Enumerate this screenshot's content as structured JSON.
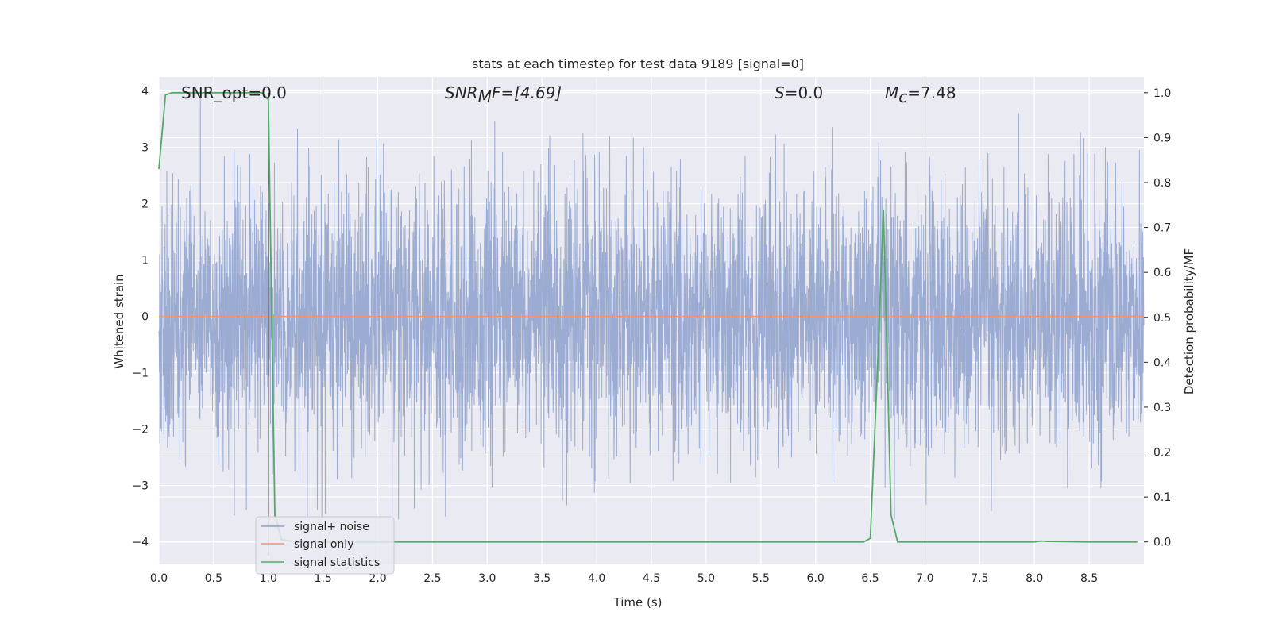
{
  "chart_data": {
    "type": "line",
    "title": "stats at each timestep for test data 9189 [signal=0]",
    "xlabel": "Time (s)",
    "ylabel_left": "Whitened strain",
    "ylabel_right": "Detection probability/MF",
    "xlim": [
      0,
      9.0
    ],
    "ylim_left": [
      -4.4,
      4.25
    ],
    "ylim_right": [
      -0.05,
      1.035
    ],
    "grid": true,
    "x_ticks": [
      "0.0",
      "0.5",
      "1.0",
      "1.5",
      "2.0",
      "2.5",
      "3.0",
      "3.5",
      "4.0",
      "4.5",
      "5.0",
      "5.5",
      "6.0",
      "6.5",
      "7.0",
      "7.5",
      "8.0",
      "8.5"
    ],
    "y_left_ticks": [
      "4",
      "3",
      "2",
      "1",
      "0",
      "−1",
      "−2",
      "−3",
      "−4"
    ],
    "y_right_ticks": [
      "1.0",
      "0.9",
      "0.8",
      "0.7",
      "0.6",
      "0.5",
      "0.4",
      "0.3",
      "0.2",
      "0.1",
      "0.0"
    ],
    "annotations": {
      "snr_opt": "SNR_opt=0.0",
      "snr_mf_prefix": "SNR",
      "snr_mf_sub": "M",
      "snr_mf_suffix": "F=[4.69]",
      "s_prefix": "S",
      "s_value": "=0.0",
      "mc_prefix": "M",
      "mc_sub": "c",
      "mc_value": "=7.48"
    },
    "legend": {
      "placement": "lower-left",
      "entries": [
        "signal+ noise",
        "signal only",
        "signal statistics"
      ]
    },
    "series": [
      {
        "name": "signal+ noise",
        "axis": "left",
        "color": "#8da0cb",
        "description_values": "whitened strain noise, amplitude ~ within ±3.9",
        "x_range": [
          0,
          9.0
        ],
        "sample_rate_hz": 200
      },
      {
        "name": "signal only",
        "axis": "left",
        "color": "#e8967a",
        "x": [
          0,
          9.0
        ],
        "y": [
          0,
          0
        ]
      },
      {
        "name": "signal statistics",
        "axis": "right",
        "color": "#55a868",
        "x": [
          0.0,
          0.06,
          0.12,
          0.25,
          0.5,
          0.75,
          0.94,
          1.0,
          1.06,
          1.12,
          1.25,
          1.5,
          2.0,
          3.0,
          4.0,
          5.0,
          6.0,
          6.44,
          6.5,
          6.56,
          6.62,
          6.69,
          6.75,
          7.0,
          8.0,
          8.06,
          8.12,
          8.5,
          8.94
        ],
        "y": [
          0.83,
          0.995,
          1.0,
          1.0,
          1.0,
          1.0,
          1.0,
          0.985,
          0.06,
          0.005,
          0.0,
          0.0,
          0.0,
          0.0,
          0.0,
          0.0,
          0.0,
          0.0,
          0.008,
          0.35,
          0.74,
          0.06,
          0.0,
          0.0,
          0.0,
          0.002,
          0.001,
          0.0,
          0.0
        ]
      }
    ],
    "vertical_marker": {
      "x": 1.0,
      "color": "#4c4c4c"
    }
  },
  "colors": {
    "plot_background": "#eaeaf2",
    "grid": "#ffffff",
    "noise": "#8da0cb",
    "signal": "#e8967a",
    "stats": "#55a868"
  }
}
